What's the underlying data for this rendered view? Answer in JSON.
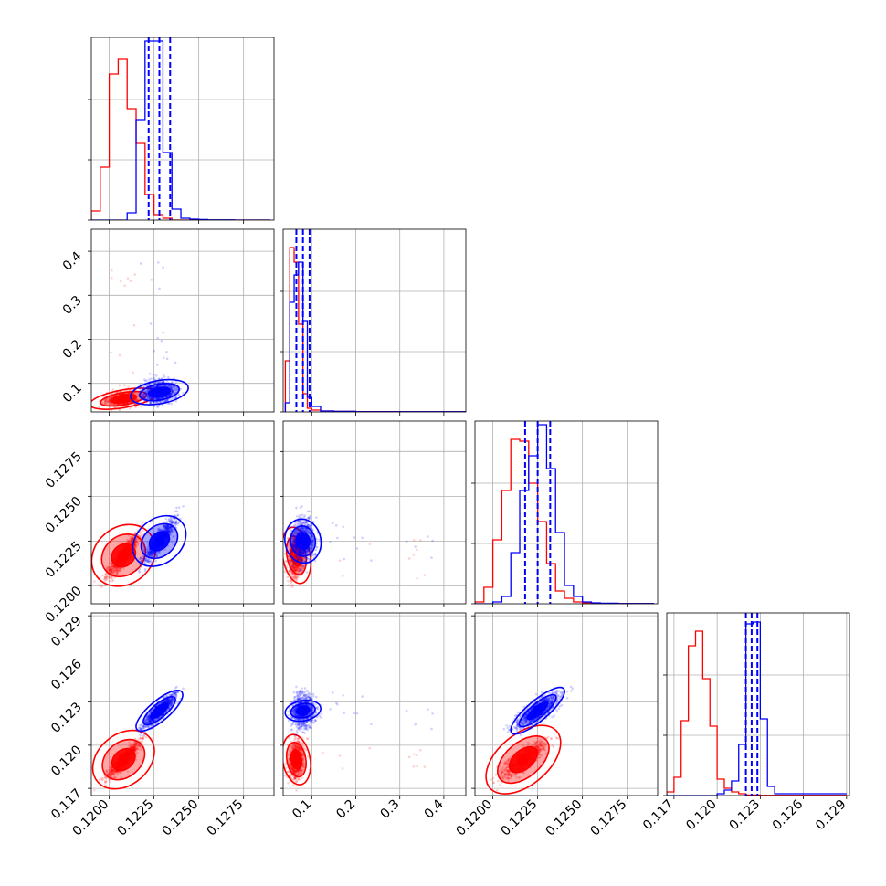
{
  "chart_data": {
    "type": "corner",
    "series": [
      {
        "color": "#ff0000",
        "points_description": "red posterior samples",
        "medians": [
          0.1208,
          0.065,
          0.1217,
          0.119
        ],
        "q16": [
          0.1201,
          0.055,
          0.1208,
          0.118
        ],
        "q84": [
          0.1215,
          0.078,
          0.1226,
          0.12
        ],
        "hist": [
          {
            "x": [
              0.119,
              0.1195,
              0.12,
              0.1205,
              0.121,
              0.1215,
              0.122,
              0.1225,
              0.123,
              0.1235,
              0.124,
              0.1245,
              0.125,
              0.1255,
              0.126,
              0.127,
              0.129
            ],
            "w": [
              0.05,
              0.29,
              0.8,
              0.88,
              0.61,
              0.42,
              0.14,
              0.03,
              0.01,
              0,
              0,
              0,
              0,
              0,
              0,
              0
            ]
          },
          {
            "x": [
              0.04,
              0.05,
              0.06,
              0.07,
              0.08,
              0.09,
              0.1,
              0.12,
              0.15,
              0.2,
              0.3,
              0.45
            ],
            "w": [
              0.28,
              0.9,
              0.82,
              0.48,
              0.1,
              0.02,
              0.01,
              0.005,
              0.003,
              0.002,
              0.001
            ]
          },
          {
            "x": [
              0.119,
              0.1195,
              0.12,
              0.1205,
              0.121,
              0.1215,
              0.122,
              0.1225,
              0.123,
              0.1235,
              0.124,
              0.1245,
              0.125,
              0.1255,
              0.126,
              0.127,
              0.129
            ],
            "w": [
              0.01,
              0.09,
              0.35,
              0.62,
              0.9,
              0.89,
              0.66,
              0.45,
              0.22,
              0.07,
              0.03,
              0.01,
              0.005,
              0.003,
              0.002,
              0.001
            ]
          },
          {
            "x": [
              0.1165,
              0.117,
              0.1175,
              0.118,
              0.1185,
              0.119,
              0.1195,
              0.12,
              0.1205,
              0.121,
              0.1215,
              0.122,
              0.123,
              0.129
            ],
            "w": [
              0.02,
              0.1,
              0.41,
              0.82,
              0.9,
              0.64,
              0.38,
              0.09,
              0.04,
              0.02,
              0.01,
              0.003,
              0.001
            ]
          }
        ]
      },
      {
        "color": "#0000ff",
        "points_description": "blue posterior samples",
        "medians": [
          0.1228,
          0.08,
          0.1225,
          0.1224
        ],
        "q16": [
          0.1222,
          0.065,
          0.1218,
          0.122
        ],
        "q84": [
          0.1234,
          0.095,
          0.1232,
          0.1228
        ],
        "hist": [
          {
            "x": [
              0.119,
              0.1195,
              0.12,
              0.1205,
              0.121,
              0.1215,
              0.122,
              0.1225,
              0.123,
              0.1235,
              0.124,
              0.1245,
              0.125,
              0.1255,
              0.126,
              0.127,
              0.129
            ],
            "w": [
              0,
              0,
              0,
              0,
              0.04,
              0.55,
              0.98,
              0.98,
              0.37,
              0.06,
              0.01,
              0.005,
              0.003,
              0.001,
              0.001,
              0
            ]
          },
          {
            "x": [
              0.04,
              0.05,
              0.06,
              0.07,
              0.08,
              0.09,
              0.1,
              0.12,
              0.15,
              0.2,
              0.3,
              0.45
            ],
            "w": [
              0.05,
              0.6,
              0.75,
              0.82,
              0.5,
              0.08,
              0.03,
              0.005,
              0.003,
              0.001,
              0.001
            ]
          },
          {
            "x": [
              0.119,
              0.1195,
              0.12,
              0.1205,
              0.121,
              0.1215,
              0.122,
              0.1225,
              0.123,
              0.1235,
              0.124,
              0.1245,
              0.125,
              0.1255,
              0.126,
              0.127,
              0.129
            ],
            "w": [
              0,
              0,
              0.01,
              0.04,
              0.28,
              0.62,
              0.81,
              0.98,
              0.74,
              0.39,
              0.1,
              0.04,
              0.01,
              0.005,
              0.003,
              0.001
            ]
          },
          {
            "x": [
              0.1165,
              0.117,
              0.1175,
              0.118,
              0.1185,
              0.119,
              0.1195,
              0.12,
              0.1205,
              0.121,
              0.1215,
              0.122,
              0.1225,
              0.123,
              0.1235,
              0.124,
              0.129
            ],
            "w": [
              0,
              0,
              0,
              0,
              0,
              0,
              0,
              0.01,
              0.03,
              0.08,
              0.28,
              0.94,
              0.95,
              0.42,
              0.05,
              0.01
            ]
          }
        ]
      }
    ],
    "axes": [
      {
        "lim": [
          0.119,
          0.1292
        ],
        "ticks": [
          0.12,
          0.1225,
          0.125,
          0.1275
        ],
        "ticklabels": [
          "0.1200",
          "0.1225",
          "0.1250",
          "0.1275"
        ]
      },
      {
        "lim": [
          0.035,
          0.45
        ],
        "ticks": [
          0.1,
          0.2,
          0.3,
          0.4
        ],
        "ticklabels": [
          "0.1",
          "0.2",
          "0.3",
          "0.4"
        ]
      },
      {
        "lim": [
          0.119,
          0.1292
        ],
        "ticks": [
          0.12,
          0.1225,
          0.125,
          0.1275
        ],
        "ticklabels": [
          "0.1200",
          "0.1225",
          "0.1250",
          "0.1275"
        ]
      },
      {
        "lim": [
          0.1165,
          0.1292
        ],
        "ticks": [
          0.117,
          0.12,
          0.123,
          0.126,
          0.129
        ],
        "ticklabels": [
          "0.117",
          "0.120",
          "0.123",
          "0.126",
          "0.129"
        ]
      }
    ],
    "grid": true,
    "legend": "none"
  }
}
